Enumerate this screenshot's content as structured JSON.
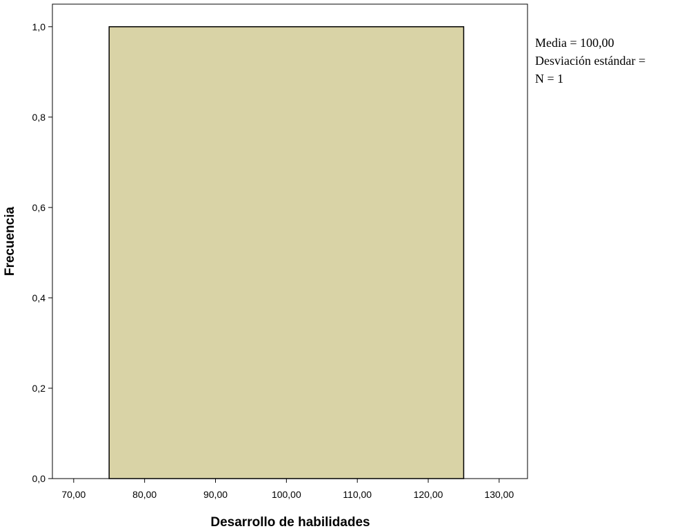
{
  "chart_data": {
    "type": "bar",
    "subtype": "histogram",
    "xlabel": "Desarrollo de habilidades",
    "ylabel": "Frecuencia",
    "xlim": [
      67,
      134
    ],
    "ylim": [
      0,
      1.05
    ],
    "x_ticks": [
      70,
      80,
      90,
      100,
      110,
      120,
      130
    ],
    "x_tick_labels": [
      "70,00",
      "80,00",
      "90,00",
      "100,00",
      "110,00",
      "120,00",
      "130,00"
    ],
    "y_ticks": [
      0,
      0.2,
      0.4,
      0.6,
      0.8,
      1.0
    ],
    "y_tick_labels": [
      "0,0",
      "0,2",
      "0,4",
      "0,6",
      "0,8",
      "1,0"
    ],
    "bins": [
      {
        "start": 75,
        "end": 125,
        "count": 1
      }
    ],
    "bar_color": "#d9d3a6",
    "bar_edge_color": "#000000",
    "grid": false,
    "legend": "none",
    "stats": {
      "mean_text": "Media = 100,00",
      "sd_text": "Desviación estándar =",
      "n_text": "N = 1"
    }
  }
}
